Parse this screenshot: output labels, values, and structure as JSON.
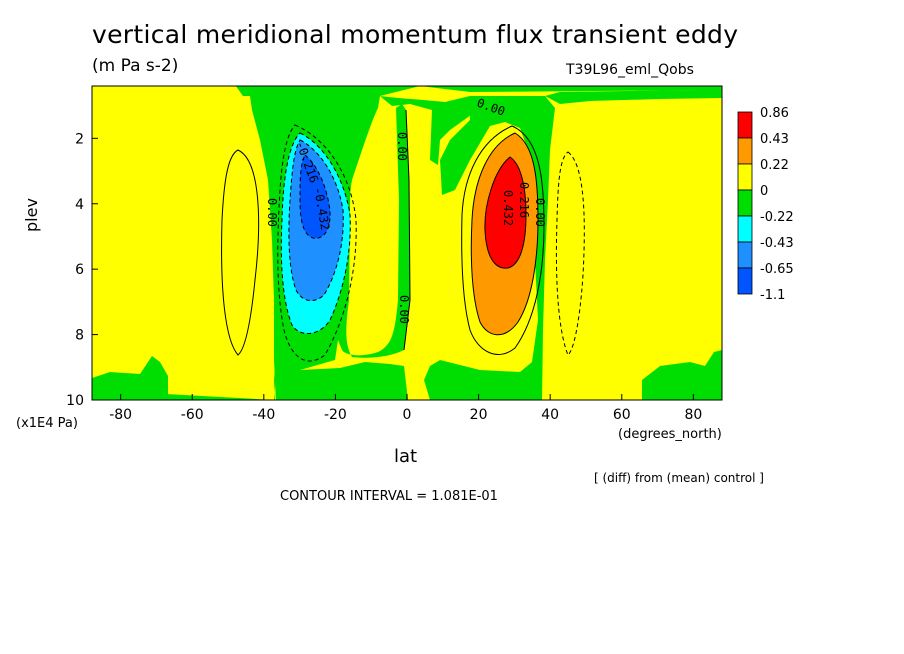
{
  "header": {
    "title": "vertical meridional momentum flux transient eddy",
    "units": "(m Pa s-2)",
    "run_id": "T39L96_eml_Qobs"
  },
  "axes": {
    "ylabel": "plev",
    "yunit": "(x1E4 Pa)",
    "xlabel": "lat",
    "xunit": "(degrees_north)"
  },
  "footer": {
    "diff_note": "[ (diff) from (mean) control ]",
    "contour_interval": "CONTOUR INTERVAL = 1.081E-01"
  },
  "chart_data": {
    "type": "heatmap",
    "title": "vertical meridional momentum flux transient eddy",
    "xlabel": "lat",
    "ylabel": "plev",
    "xlim": [
      -88,
      88
    ],
    "ylim": [
      10,
      0.4
    ],
    "x_ticks": [
      -80,
      -60,
      -40,
      -20,
      0,
      20,
      40,
      60,
      80
    ],
    "y_ticks": [
      2,
      4,
      6,
      8,
      10
    ],
    "y_inverted": true,
    "colorbar": {
      "labels": [
        "0.86",
        "0.43",
        "0.22",
        "0",
        "-0.22",
        "-0.43",
        "-0.65",
        "-1.1"
      ],
      "colors": [
        "#ff0000",
        "#ff9900",
        "#ffff00",
        "#00dd00",
        "#00ffff",
        "#1e90ff",
        "#0055ff"
      ]
    },
    "contour_labels": [
      "0.00",
      "0.00",
      "0.00",
      "0.00",
      "0.00",
      "-0.216",
      "-0.432",
      "0.432",
      "0.216"
    ],
    "features": [
      {
        "name": "negative center",
        "lat": -27,
        "plev": 3.6,
        "value": -1.1
      },
      {
        "name": "positive center",
        "lat": 31,
        "plev": 3.8,
        "value": 0.86
      }
    ]
  }
}
